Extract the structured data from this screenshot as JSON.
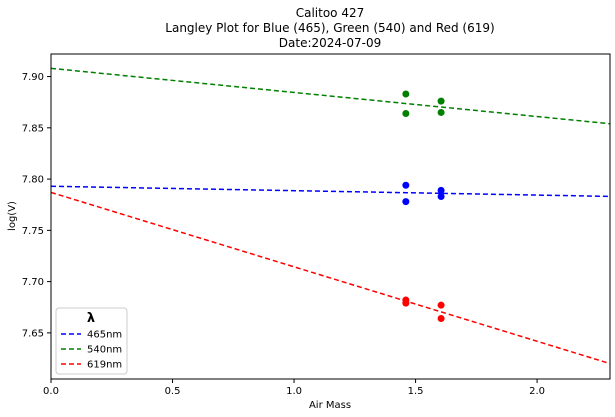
{
  "chart_data": {
    "type": "scatter",
    "title_lines": [
      "Calitoo 427",
      "Langley Plot for Blue (465), Green (540) and Red (619)",
      "Date:2024-07-09"
    ],
    "xlabel": "Air Mass",
    "ylabel": "log(V)",
    "xlim": [
      0.0,
      2.3
    ],
    "ylim": [
      7.605,
      7.922
    ],
    "xticks": [
      "0.0",
      "0.5",
      "1.0",
      "1.5",
      "2.0"
    ],
    "yticks": [
      "7.65",
      "7.70",
      "7.75",
      "7.80",
      "7.85",
      "7.90"
    ],
    "grid": false,
    "legend": {
      "title": "λ",
      "placement": "lower-left",
      "entries": [
        "465nm",
        "540nm",
        "619nm"
      ]
    },
    "series": [
      {
        "name": "465nm",
        "color": "#0000ff",
        "points": [
          {
            "x": 1.46,
            "y": 7.794
          },
          {
            "x": 1.46,
            "y": 7.778
          },
          {
            "x": 1.605,
            "y": 7.789
          },
          {
            "x": 1.605,
            "y": 7.783
          }
        ],
        "fit": {
          "intercept": 7.793,
          "slope": -0.0043
        }
      },
      {
        "name": "540nm",
        "color": "#008000",
        "points": [
          {
            "x": 1.46,
            "y": 7.883
          },
          {
            "x": 1.46,
            "y": 7.864
          },
          {
            "x": 1.605,
            "y": 7.876
          },
          {
            "x": 1.605,
            "y": 7.865
          }
        ],
        "fit": {
          "intercept": 7.908,
          "slope": -0.0235
        }
      },
      {
        "name": "619nm",
        "color": "#ff0000",
        "points": [
          {
            "x": 1.46,
            "y": 7.682
          },
          {
            "x": 1.46,
            "y": 7.679
          },
          {
            "x": 1.605,
            "y": 7.677
          },
          {
            "x": 1.605,
            "y": 7.664
          }
        ],
        "fit": {
          "intercept": 7.787,
          "slope": -0.0726
        }
      }
    ]
  }
}
